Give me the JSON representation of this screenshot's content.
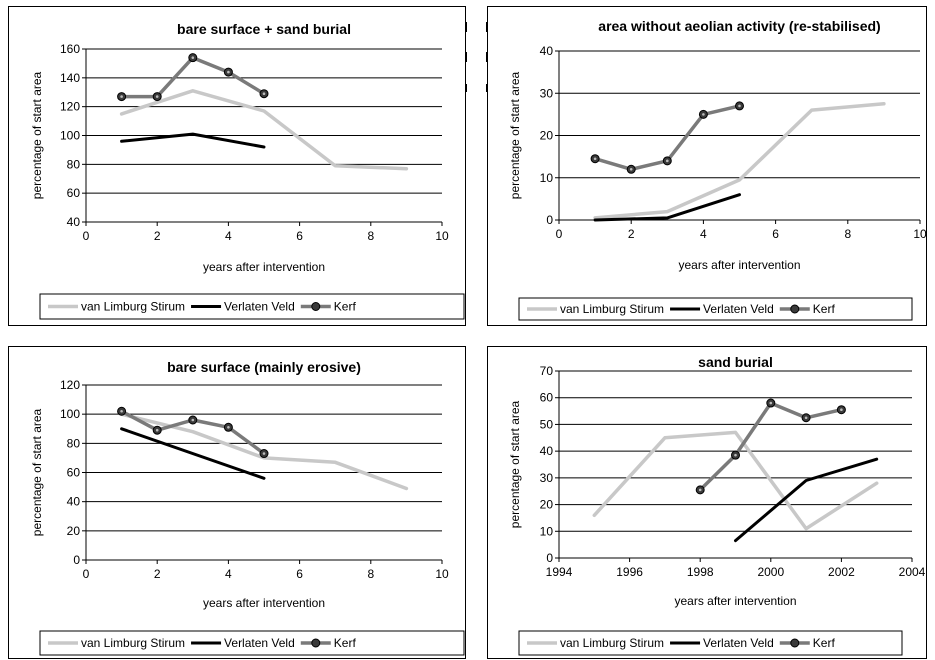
{
  "legend_labels": [
    "van Limburg Stirum",
    "Verlaten Veld",
    "Kerf"
  ],
  "series_colors": {
    "van Limburg Stirum": "#c8c8c8",
    "Verlaten Veld": "#000000",
    "Kerf": "#7a7a7a"
  },
  "chart_data": [
    {
      "type": "line",
      "title": "bare surface + sand burial",
      "xlabel": "years after intervention",
      "ylabel": "percentage of start area",
      "xlim": [
        0,
        10
      ],
      "xticks": [
        0,
        2,
        4,
        6,
        8,
        10
      ],
      "ylim": [
        40,
        160
      ],
      "yticks": [
        40,
        60,
        80,
        100,
        120,
        140,
        160
      ],
      "grid": "horizontal",
      "legend": "bottom",
      "series": [
        {
          "name": "van Limburg Stirum",
          "x": [
            1,
            3,
            5,
            7,
            9
          ],
          "y": [
            115,
            131,
            117,
            79,
            77
          ]
        },
        {
          "name": "Verlaten Veld",
          "x": [
            1,
            3,
            5
          ],
          "y": [
            96,
            101,
            92
          ]
        },
        {
          "name": "Kerf",
          "x": [
            1,
            2,
            3,
            4,
            5
          ],
          "y": [
            127,
            127,
            154,
            144,
            129
          ]
        }
      ]
    },
    {
      "type": "line",
      "title": "area without aeolian activity (re-stabilised)",
      "xlabel": "years after intervention",
      "ylabel": "percentage of start area",
      "xlim": [
        0,
        10
      ],
      "xticks": [
        0,
        2,
        4,
        6,
        8,
        10
      ],
      "ylim": [
        0,
        40
      ],
      "yticks": [
        0,
        10,
        20,
        30,
        40
      ],
      "grid": "horizontal",
      "legend": "bottom",
      "series": [
        {
          "name": "van Limburg Stirum",
          "x": [
            1,
            3,
            5,
            7,
            9
          ],
          "y": [
            0.5,
            2,
            9.5,
            26,
            27.5
          ]
        },
        {
          "name": "Verlaten Veld",
          "x": [
            1,
            3,
            5
          ],
          "y": [
            0,
            0.5,
            6
          ]
        },
        {
          "name": "Kerf",
          "x": [
            1,
            2,
            3,
            4,
            5
          ],
          "y": [
            14.5,
            12,
            14,
            25,
            27
          ]
        }
      ]
    },
    {
      "type": "line",
      "title": "bare surface (mainly erosive)",
      "xlabel": "years after intervention",
      "ylabel": "percentage of start area",
      "xlim": [
        0,
        10
      ],
      "xticks": [
        0,
        2,
        4,
        6,
        8,
        10
      ],
      "ylim": [
        0,
        120
      ],
      "yticks": [
        0,
        20,
        40,
        60,
        80,
        100,
        120
      ],
      "grid": "horizontal",
      "legend": "bottom",
      "series": [
        {
          "name": "van Limburg Stirum",
          "x": [
            1,
            3,
            5,
            7,
            9
          ],
          "y": [
            100,
            88,
            70,
            67,
            49
          ]
        },
        {
          "name": "Verlaten Veld",
          "x": [
            1,
            5
          ],
          "y": [
            90,
            56
          ]
        },
        {
          "name": "Kerf",
          "x": [
            1,
            2,
            3,
            4,
            5
          ],
          "y": [
            102,
            89,
            96,
            91,
            73
          ]
        }
      ]
    },
    {
      "type": "line",
      "title": "sand burial",
      "xlabel": "years after intervention",
      "ylabel": "percentage of start area",
      "xlim": [
        1994,
        2004
      ],
      "xticks": [
        1994,
        1996,
        1998,
        2000,
        2002,
        2004
      ],
      "ylim": [
        0,
        70
      ],
      "yticks": [
        0,
        10,
        20,
        30,
        40,
        50,
        60,
        70
      ],
      "grid": "horizontal",
      "legend": "bottom",
      "series": [
        {
          "name": "van Limburg Stirum",
          "x": [
            1995,
            1997,
            1999,
            2001,
            2003
          ],
          "y": [
            16,
            45,
            47,
            11,
            28
          ]
        },
        {
          "name": "Verlaten Veld",
          "x": [
            1999,
            2001,
            2003
          ],
          "y": [
            6.5,
            29,
            37
          ]
        },
        {
          "name": "Kerf",
          "x": [
            1998,
            1999,
            2000,
            2001,
            2002
          ],
          "y": [
            25.5,
            38.5,
            58,
            52.5,
            55.5
          ]
        }
      ]
    }
  ]
}
